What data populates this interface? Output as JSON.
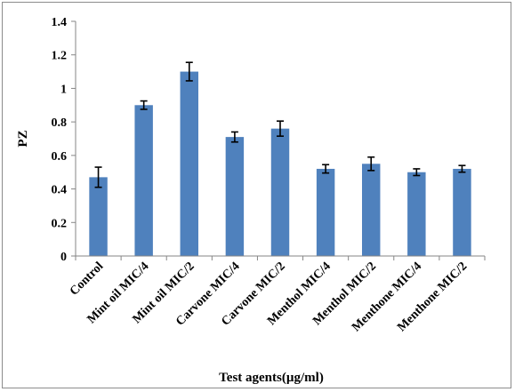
{
  "chart_data": {
    "type": "bar",
    "title": "",
    "xlabel": "Test agents(µg/ml)",
    "ylabel": "PZ",
    "categories": [
      "Control",
      "Mint oil MIC/4",
      "Mint oil MIC/2",
      "Carvone MIC/4",
      "Carvone MIC/2",
      "Menthol MIC/4",
      "Menthol MIC/2",
      "Menthone MIC/4",
      "Menthone MIC/2"
    ],
    "values": [
      0.47,
      0.9,
      1.1,
      0.71,
      0.76,
      0.52,
      0.55,
      0.5,
      0.52
    ],
    "errors": [
      0.06,
      0.025,
      0.055,
      0.03,
      0.045,
      0.025,
      0.04,
      0.02,
      0.02
    ],
    "ylim": [
      0,
      1.4
    ],
    "yticks": [
      "0",
      "0.2",
      "0.4",
      "0.6",
      "0.8",
      "1",
      "1.2",
      "1.4"
    ],
    "grid": false,
    "legend": "none",
    "bar_color": "#4f81bd"
  }
}
